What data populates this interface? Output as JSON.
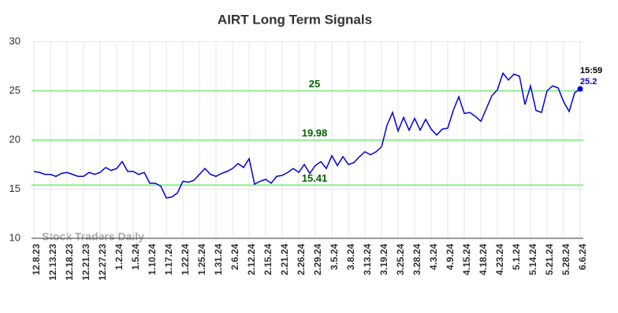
{
  "chart_data": {
    "type": "line",
    "title": "AIRT Long Term Signals",
    "watermark": "Stock Traders Daily",
    "time_label": "15:59",
    "categories": [
      "12.8.23",
      null,
      null,
      "12.13.23",
      null,
      null,
      "12.18.23",
      null,
      null,
      "12.21.23",
      null,
      null,
      "12.27.23",
      null,
      null,
      "1.2.24",
      null,
      null,
      "1.5.24",
      null,
      null,
      "1.10.24",
      null,
      null,
      "1.17.24",
      null,
      null,
      "1.22.24",
      null,
      null,
      "1.25.24",
      null,
      null,
      "1.31.24",
      null,
      null,
      "2.6.24",
      null,
      null,
      "2.12.24",
      null,
      null,
      "2.15.24",
      null,
      null,
      "2.21.24",
      null,
      null,
      "2.26.24",
      null,
      null,
      "2.29.24",
      null,
      null,
      "3.5.24",
      null,
      null,
      "3.8.24",
      null,
      null,
      "3.13.24",
      null,
      null,
      "3.19.24",
      null,
      null,
      "3.25.24",
      null,
      null,
      "3.28.24",
      null,
      null,
      "4.3.24",
      null,
      null,
      "4.9.24",
      null,
      null,
      "4.15.24",
      null,
      null,
      "4.18.24",
      null,
      null,
      "4.23.24",
      null,
      null,
      "5.1.24",
      null,
      null,
      "5.14.24",
      null,
      null,
      "5.21.24",
      null,
      null,
      "5.28.24",
      null,
      null,
      "6.6.24"
    ],
    "series": [
      {
        "name": "AIRT",
        "color": "#0000dd",
        "values": [
          16.8,
          16.7,
          16.5,
          16.5,
          16.3,
          16.6,
          16.7,
          16.5,
          16.3,
          16.3,
          16.7,
          16.5,
          16.7,
          17.2,
          16.9,
          17.1,
          17.8,
          16.8,
          16.8,
          16.5,
          16.7,
          15.6,
          15.6,
          15.3,
          14.1,
          14.2,
          14.6,
          15.8,
          15.7,
          15.9,
          16.5,
          17.1,
          16.5,
          16.3,
          16.6,
          16.8,
          17.1,
          17.6,
          17.2,
          18.1,
          15.5,
          15.8,
          16.0,
          15.6,
          16.3,
          16.4,
          16.7,
          17.1,
          16.7,
          17.5,
          16.6,
          17.4,
          17.8,
          17.1,
          18.4,
          17.4,
          18.3,
          17.5,
          17.7,
          18.3,
          18.8,
          18.5,
          18.8,
          19.3,
          21.5,
          22.8,
          20.9,
          22.3,
          21.0,
          22.2,
          21.0,
          22.1,
          21.1,
          20.5,
          21.1,
          21.2,
          23.0,
          24.4,
          22.7,
          22.8,
          22.4,
          21.9,
          23.2,
          24.5,
          25.1,
          26.8,
          26.1,
          26.7,
          26.5,
          23.6,
          25.5,
          23.0,
          22.8,
          25.0,
          25.5,
          25.3,
          23.9,
          22.9,
          24.8,
          25.2
        ]
      }
    ],
    "hlines": [
      25,
      19.98,
      15.41
    ],
    "hline_color": "#90ee90",
    "hline_label_color": "#006400",
    "ylim": [
      10,
      30
    ],
    "yticks": [
      10,
      15,
      20,
      25,
      30
    ],
    "grid": true
  }
}
